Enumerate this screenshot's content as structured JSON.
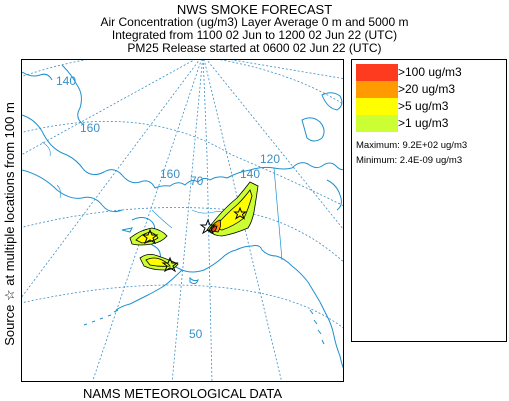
{
  "header": {
    "line1": "NWS SMOKE FORECAST",
    "line2": "Air Concentration (ug/m3) Layer Average    0 m and  5000 m",
    "line3": "Integrated from 1100 02 Jun to 1200 02 Jun 22 (UTC)",
    "line4": "PM25 Release started at 0600 02 Jun 22 (UTC)"
  },
  "side_label": "Source ☆  at multiple locations     from   100 m",
  "footer": "NAMS METEOROLOGICAL DATA",
  "map": {
    "grid_labels": [
      "140",
      "160",
      "140",
      "120",
      "70",
      "50",
      "160"
    ],
    "coast_color": "#1e90d0",
    "grid_color": "#3a8fc4",
    "source_marker": "star-icon"
  },
  "legend": {
    "items": [
      {
        "label": ">100 ug/m3",
        "color": "#ff3b1f"
      },
      {
        "label": ">20 ug/m3",
        "color": "#ff9a00"
      },
      {
        "label": ">5 ug/m3",
        "color": "#ffff00"
      },
      {
        "label": ">1 ug/m3",
        "color": "#ccff33"
      }
    ],
    "maximum": "Maximum: 9.2E+02 ug/m3",
    "minimum": "Minimum: 2.4E-09 ug/m3"
  }
}
